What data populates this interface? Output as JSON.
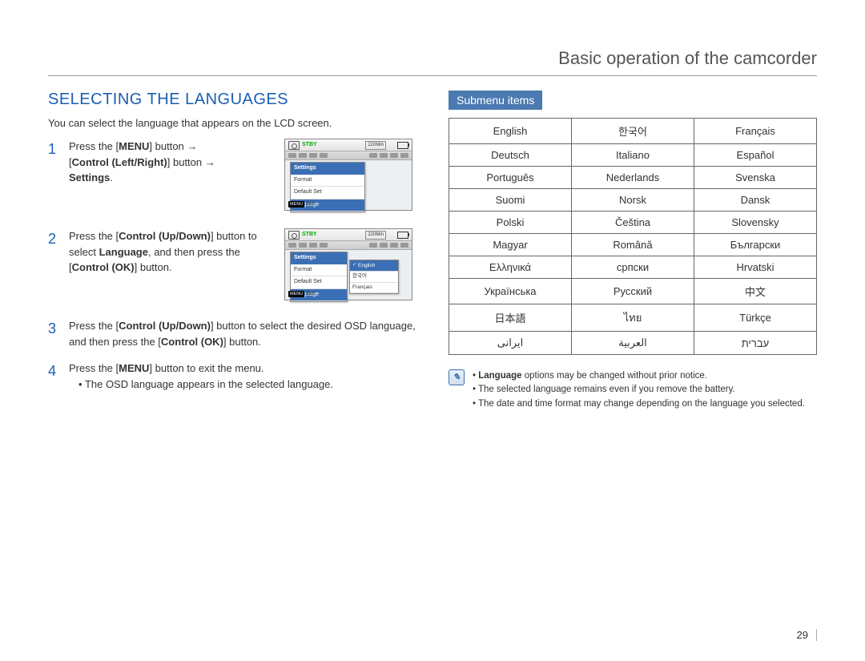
{
  "header": "Basic operation of the camcorder",
  "section_title": "SELECTING THE LANGUAGES",
  "intro": "You can select the language that appears on the LCD screen.",
  "steps": [
    {
      "num": "1",
      "parts": [
        "Press the [",
        "MENU",
        "] button ",
        "→",
        " [",
        "Control (Left/Right)",
        "] button ",
        "→",
        " ",
        "Settings",
        "."
      ]
    },
    {
      "num": "2",
      "parts": [
        "Press the [",
        "Control (Up/Down)",
        "] button to select ",
        "Language",
        ", and then press the [",
        "Control (OK)",
        "] button."
      ]
    },
    {
      "num": "3",
      "parts": [
        "Press the [",
        "Control (Up/Down)",
        "] button to select the desired OSD language, and then press the [",
        "Control (OK)",
        "] button."
      ]
    },
    {
      "num": "4",
      "parts": [
        "Press the [",
        "MENU",
        "] button to exit the menu."
      ]
    }
  ],
  "step4_bullet": "The OSD language appears in the selected language.",
  "submenu_label": "Submenu items",
  "lang_rows": [
    [
      "English",
      "한국어",
      "Français"
    ],
    [
      "Deutsch",
      "Italiano",
      "Español"
    ],
    [
      "Português",
      "Nederlands",
      "Svenska"
    ],
    [
      "Suomi",
      "Norsk",
      "Dansk"
    ],
    [
      "Polski",
      "Čeština",
      "Slovensky"
    ],
    [
      "Magyar",
      "Română",
      "Български"
    ],
    [
      "Ελληνικά",
      "српски",
      "Hrvatski"
    ],
    [
      "Українська",
      "Русский",
      "中文"
    ],
    [
      "日本語",
      "ไทย",
      "Türkçe"
    ],
    [
      "ایرانی",
      "العربية",
      "עברית"
    ]
  ],
  "notes": [
    {
      "bold": "Language",
      "rest": " options may be changed without prior notice."
    },
    {
      "rest": "The selected language remains even if you remove the battery."
    },
    {
      "rest": "The date and time format may change depending on the language you selected."
    }
  ],
  "page_number": "29",
  "lcd": {
    "stby": "STBY",
    "time": "220Min",
    "panel1": {
      "header": "Settings",
      "rows": [
        "Format",
        "Default Set",
        "Language"
      ],
      "hl": "Language"
    },
    "panel2": {
      "header": "Settings",
      "rows": [
        "Format",
        "Default Set",
        "Language"
      ],
      "sub": [
        "English",
        "한국어",
        "Français"
      ],
      "sub_hl": "English"
    },
    "exit": "Exit",
    "menu": "MENU"
  },
  "colors": {
    "heading": "#1a5fb4",
    "badge_bg": "#4a7ab0",
    "lcd_hl": "#3b6fb5",
    "stby": "#00aa00"
  }
}
